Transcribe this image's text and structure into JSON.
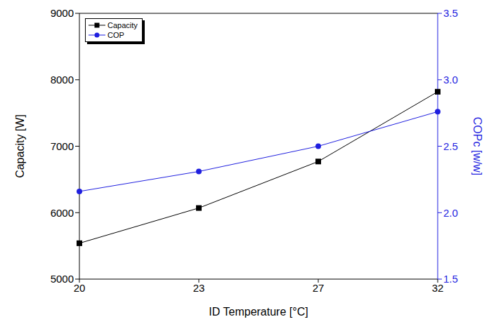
{
  "chart_data": {
    "type": "line",
    "x_label": "ID Temperature [°C]",
    "y_label": "Capacity [W]",
    "y2_label": "COPc [w/w]",
    "categories": [
      "20",
      "23",
      "27",
      "32"
    ],
    "ylim": [
      5000,
      9000
    ],
    "yticks": [
      5000,
      6000,
      7000,
      8000,
      9000
    ],
    "y2lim": [
      1.5,
      3.5
    ],
    "y2ticks": [
      1.5,
      {
        "value": 2,
        "label": "2.0"
      },
      2.5,
      {
        "value": 3,
        "label": "3.0"
      },
      3.5
    ],
    "legend": "upper left",
    "grid": false,
    "series": [
      {
        "name": "Capacity",
        "color": "#000000",
        "marker": "square",
        "line_style": "solid",
        "values": [
          5540,
          6070,
          6770,
          7820
        ]
      },
      {
        "name": "COP",
        "color": "#1f1fdf",
        "marker": "circle",
        "line_style": "solid",
        "axis": "y2",
        "values": [
          2.16,
          2.31,
          2.5,
          2.76
        ]
      }
    ]
  }
}
